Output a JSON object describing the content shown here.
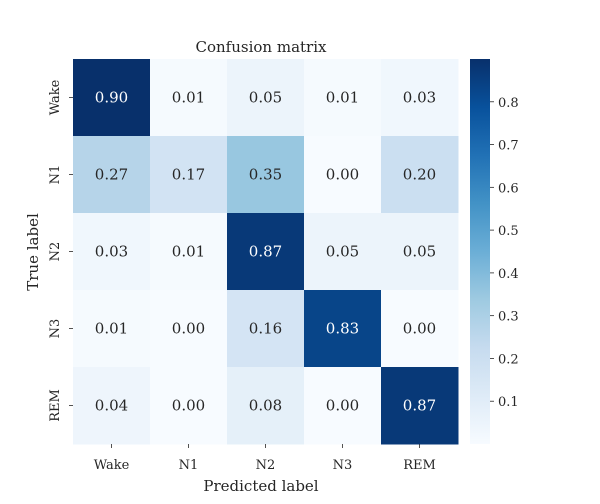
{
  "chart_data": {
    "type": "heatmap",
    "title": "Confusion matrix",
    "xlabel": "Predicted label",
    "ylabel": "True label",
    "x_categories": [
      "Wake",
      "N1",
      "N2",
      "N3",
      "REM"
    ],
    "y_categories": [
      "Wake",
      "N1",
      "N2",
      "N3",
      "REM"
    ],
    "values": [
      [
        0.9,
        0.01,
        0.05,
        0.01,
        0.03
      ],
      [
        0.27,
        0.17,
        0.35,
        0.0,
        0.2
      ],
      [
        0.03,
        0.01,
        0.87,
        0.05,
        0.05
      ],
      [
        0.01,
        0.0,
        0.16,
        0.83,
        0.0
      ],
      [
        0.04,
        0.0,
        0.08,
        0.0,
        0.87
      ]
    ],
    "value_format": "0.00",
    "colormap": "Blues",
    "colormap_stops": [
      "#f7fbff",
      "#deebf7",
      "#c6dbef",
      "#9ecae1",
      "#6baed6",
      "#4292c6",
      "#2171b5",
      "#08519c",
      "#08306b"
    ],
    "colorbar": {
      "range": [
        0.0,
        0.9
      ],
      "ticks": [
        0.1,
        0.2,
        0.3,
        0.4,
        0.5,
        0.6,
        0.7,
        0.8
      ],
      "tick_labels": [
        "0.1",
        "0.2",
        "0.3",
        "0.4",
        "0.5",
        "0.6",
        "0.7",
        "0.8"
      ]
    },
    "light_text_color": "#ffffff",
    "dark_text_color": "#262626"
  }
}
